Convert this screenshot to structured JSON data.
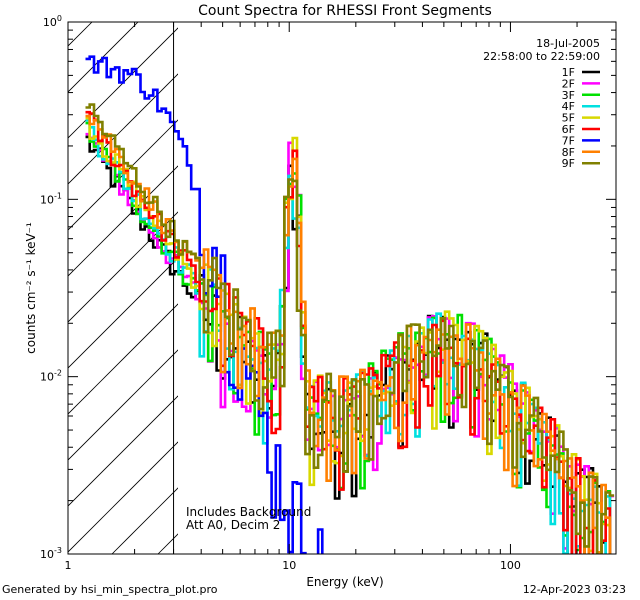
{
  "chart_data": {
    "type": "line",
    "title": "Count Spectra for RHESSI Front Segments",
    "xlabel": "Energy (keV)",
    "ylabel": "counts cm⁻² s⁻¹ keV⁻¹",
    "xscale": "log",
    "yscale": "log",
    "xlim": [
      1.0,
      300.0
    ],
    "ylim": [
      0.001,
      1.0
    ],
    "x_ticks": [
      {
        "value": 1,
        "label": "1"
      },
      {
        "value": 10,
        "label": "10"
      },
      {
        "value": 100,
        "label": "100"
      }
    ],
    "y_ticks": [
      {
        "value": 0.001,
        "mantissa": "10",
        "exp": "-3"
      },
      {
        "value": 0.01,
        "mantissa": "10",
        "exp": "-2"
      },
      {
        "value": 0.1,
        "mantissa": "10",
        "exp": "-1"
      },
      {
        "value": 1,
        "mantissa": "10",
        "exp": "0"
      }
    ],
    "date": "18-Jul-2005",
    "time_range": "22:58:00 to 22:59:00",
    "annotation_line1": "Includes Background",
    "annotation_line2": "Att A0, Decim 2",
    "hatched_region_max_keV": 3.0,
    "series": [
      {
        "name": "1F",
        "color": "#000000"
      },
      {
        "name": "2F",
        "color": "#ff00ff"
      },
      {
        "name": "3F",
        "color": "#00e000"
      },
      {
        "name": "4F",
        "color": "#00e0e0"
      },
      {
        "name": "5F",
        "color": "#d8d800"
      },
      {
        "name": "6F",
        "color": "#ff0000"
      },
      {
        "name": "7F",
        "color": "#0000ff"
      },
      {
        "name": "8F",
        "color": "#ff8000"
      },
      {
        "name": "9F",
        "color": "#808000"
      }
    ],
    "generated_by": "Generated by hsi_min_spectra_plot.pro",
    "generated_date": "12-Apr-2023 03:23"
  }
}
